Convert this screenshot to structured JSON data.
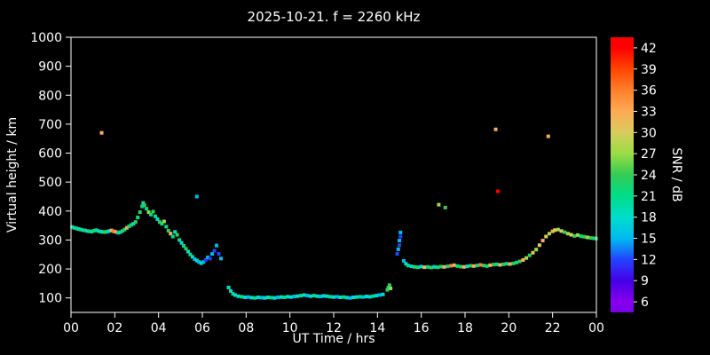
{
  "title": "2025-10-21. f = 2260 kHz",
  "colors": {
    "background": "#000000",
    "foreground": "#ffffff"
  },
  "chart_data": {
    "type": "scatter",
    "title": "2025-10-21. f = 2260 kHz",
    "xlabel": "UT Time / hrs",
    "ylabel": "Virtual height / km",
    "colorbar_label": "SNR / dB",
    "xlim": [
      0,
      24
    ],
    "ylim": [
      50,
      1000
    ],
    "x_ticks": [
      0,
      2,
      4,
      6,
      8,
      10,
      12,
      14,
      16,
      18,
      20,
      22,
      24
    ],
    "x_tick_labels": [
      "00",
      "02",
      "04",
      "06",
      "08",
      "10",
      "12",
      "14",
      "16",
      "18",
      "20",
      "22",
      "00"
    ],
    "y_ticks": [
      100,
      200,
      300,
      400,
      500,
      600,
      700,
      800,
      900,
      1000
    ],
    "grid": false,
    "colorbar": {
      "min": 4.5,
      "max": 43.5,
      "ticks": [
        6,
        9,
        12,
        15,
        18,
        21,
        24,
        27,
        30,
        33,
        36,
        39,
        42
      ],
      "stops": [
        [
          4.5,
          "#7a00e6"
        ],
        [
          6,
          "#8800ee"
        ],
        [
          9,
          "#4400e6"
        ],
        [
          12,
          "#2244ff"
        ],
        [
          15,
          "#00bbee"
        ],
        [
          18,
          "#00ddcc"
        ],
        [
          21,
          "#00dd88"
        ],
        [
          24,
          "#33cc55"
        ],
        [
          27,
          "#99dd44"
        ],
        [
          30,
          "#d8cc5e"
        ],
        [
          33,
          "#ffaa55"
        ],
        [
          36,
          "#ff7f2a"
        ],
        [
          39,
          "#ff4500"
        ],
        [
          42,
          "#ff0000"
        ],
        [
          43.5,
          "#ff0000"
        ]
      ]
    },
    "points": [
      [
        0.05,
        345,
        21
      ],
      [
        0.15,
        342,
        18
      ],
      [
        0.25,
        340,
        24
      ],
      [
        0.35,
        338,
        18
      ],
      [
        0.45,
        336,
        21
      ],
      [
        0.55,
        334,
        18
      ],
      [
        0.65,
        333,
        24
      ],
      [
        0.75,
        331,
        18
      ],
      [
        0.85,
        330,
        21
      ],
      [
        0.95,
        329,
        18
      ],
      [
        1.05,
        332,
        24
      ],
      [
        1.15,
        334,
        21
      ],
      [
        1.25,
        331,
        18
      ],
      [
        1.35,
        329,
        21
      ],
      [
        1.4,
        670,
        33
      ],
      [
        1.45,
        328,
        18
      ],
      [
        1.55,
        327,
        24
      ],
      [
        1.65,
        329,
        21
      ],
      [
        1.75,
        331,
        18
      ],
      [
        1.85,
        333,
        33
      ],
      [
        1.95,
        330,
        36
      ],
      [
        2.05,
        328,
        33
      ],
      [
        2.15,
        325,
        21
      ],
      [
        2.25,
        327,
        18
      ],
      [
        2.35,
        331,
        24
      ],
      [
        2.45,
        336,
        21
      ],
      [
        2.55,
        342,
        33
      ],
      [
        2.65,
        347,
        24
      ],
      [
        2.75,
        352,
        21
      ],
      [
        2.85,
        356,
        18
      ],
      [
        2.95,
        362,
        24
      ],
      [
        3.05,
        378,
        21
      ],
      [
        3.15,
        396,
        24
      ],
      [
        3.25,
        416,
        21
      ],
      [
        3.3,
        428,
        18
      ],
      [
        3.35,
        420,
        24
      ],
      [
        3.45,
        408,
        21
      ],
      [
        3.55,
        396,
        27
      ],
      [
        3.65,
        388,
        21
      ],
      [
        3.75,
        398,
        24
      ],
      [
        3.85,
        382,
        21
      ],
      [
        3.95,
        372,
        18
      ],
      [
        4.05,
        362,
        24
      ],
      [
        4.15,
        356,
        21
      ],
      [
        4.25,
        364,
        27
      ],
      [
        4.35,
        346,
        21
      ],
      [
        4.45,
        332,
        24
      ],
      [
        4.55,
        322,
        33
      ],
      [
        4.65,
        312,
        21
      ],
      [
        4.75,
        328,
        18
      ],
      [
        4.85,
        318,
        24
      ],
      [
        4.95,
        300,
        21
      ],
      [
        5.05,
        290,
        18
      ],
      [
        5.15,
        280,
        21
      ],
      [
        5.25,
        270,
        24
      ],
      [
        5.35,
        260,
        18
      ],
      [
        5.45,
        250,
        21
      ],
      [
        5.55,
        242,
        18
      ],
      [
        5.65,
        234,
        15
      ],
      [
        5.75,
        450,
        15
      ],
      [
        5.75,
        229,
        18
      ],
      [
        5.85,
        224,
        15
      ],
      [
        5.95,
        220,
        18
      ],
      [
        6.05,
        224,
        15
      ],
      [
        6.15,
        231,
        12
      ],
      [
        6.25,
        240,
        15
      ],
      [
        6.35,
        236,
        12
      ],
      [
        6.45,
        252,
        15
      ],
      [
        6.55,
        263,
        12
      ],
      [
        6.65,
        281,
        15
      ],
      [
        6.75,
        252,
        12
      ],
      [
        6.85,
        236,
        15
      ],
      [
        7.2,
        136,
        18
      ],
      [
        7.3,
        124,
        18
      ],
      [
        7.4,
        114,
        21
      ],
      [
        7.5,
        110,
        18
      ],
      [
        7.65,
        106,
        18
      ],
      [
        7.8,
        104,
        21
      ],
      [
        7.95,
        102,
        18
      ],
      [
        8.1,
        103,
        15
      ],
      [
        8.25,
        101,
        18
      ],
      [
        8.4,
        100,
        21
      ],
      [
        8.55,
        102,
        18
      ],
      [
        8.7,
        101,
        15
      ],
      [
        8.85,
        100,
        18
      ],
      [
        9.0,
        102,
        18
      ],
      [
        9.15,
        101,
        21
      ],
      [
        9.3,
        100,
        18
      ],
      [
        9.45,
        102,
        15
      ],
      [
        9.6,
        103,
        18
      ],
      [
        9.75,
        102,
        21
      ],
      [
        9.9,
        104,
        18
      ],
      [
        10.05,
        103,
        18
      ],
      [
        10.2,
        105,
        15
      ],
      [
        10.35,
        106,
        18
      ],
      [
        10.5,
        108,
        21
      ],
      [
        10.65,
        110,
        18
      ],
      [
        10.8,
        108,
        15
      ],
      [
        10.95,
        106,
        18
      ],
      [
        11.1,
        108,
        21
      ],
      [
        11.25,
        106,
        18
      ],
      [
        11.4,
        105,
        15
      ],
      [
        11.55,
        107,
        18
      ],
      [
        11.7,
        106,
        18
      ],
      [
        11.85,
        104,
        21
      ],
      [
        12.0,
        103,
        18
      ],
      [
        12.15,
        104,
        15
      ],
      [
        12.3,
        102,
        18
      ],
      [
        12.45,
        103,
        21
      ],
      [
        12.6,
        101,
        18
      ],
      [
        12.75,
        100,
        15
      ],
      [
        12.9,
        102,
        18
      ],
      [
        13.05,
        103,
        18
      ],
      [
        13.2,
        104,
        21
      ],
      [
        13.35,
        103,
        15
      ],
      [
        13.5,
        105,
        18
      ],
      [
        13.65,
        104,
        18
      ],
      [
        13.8,
        106,
        21
      ],
      [
        13.95,
        108,
        18
      ],
      [
        14.1,
        110,
        15
      ],
      [
        14.25,
        112,
        18
      ],
      [
        14.45,
        128,
        24
      ],
      [
        14.5,
        136,
        21
      ],
      [
        14.55,
        144,
        24
      ],
      [
        14.6,
        133,
        27
      ],
      [
        14.9,
        252,
        12
      ],
      [
        14.95,
        268,
        15
      ],
      [
        15.0,
        282,
        12
      ],
      [
        15.0,
        298,
        15
      ],
      [
        15.05,
        312,
        12
      ],
      [
        15.05,
        326,
        15
      ],
      [
        15.2,
        228,
        15
      ],
      [
        15.3,
        218,
        18
      ],
      [
        15.4,
        212,
        21
      ],
      [
        15.55,
        209,
        18
      ],
      [
        15.7,
        207,
        24
      ],
      [
        15.85,
        206,
        21
      ],
      [
        16.0,
        208,
        18
      ],
      [
        16.15,
        206,
        33
      ],
      [
        16.3,
        207,
        21
      ],
      [
        16.45,
        205,
        24
      ],
      [
        16.6,
        207,
        18
      ],
      [
        16.75,
        206,
        21
      ],
      [
        16.8,
        422,
        27
      ],
      [
        16.9,
        208,
        24
      ],
      [
        17.05,
        207,
        33
      ],
      [
        17.1,
        412,
        24
      ],
      [
        17.2,
        209,
        21
      ],
      [
        17.35,
        211,
        36
      ],
      [
        17.5,
        213,
        33
      ],
      [
        17.65,
        210,
        21
      ],
      [
        17.8,
        208,
        24
      ],
      [
        17.95,
        207,
        33
      ],
      [
        18.1,
        209,
        18
      ],
      [
        18.25,
        211,
        24
      ],
      [
        18.4,
        210,
        33
      ],
      [
        18.55,
        212,
        21
      ],
      [
        18.7,
        214,
        36
      ],
      [
        18.85,
        212,
        24
      ],
      [
        19.0,
        210,
        21
      ],
      [
        19.15,
        213,
        33
      ],
      [
        19.3,
        215,
        24
      ],
      [
        19.4,
        682,
        33
      ],
      [
        19.45,
        216,
        21
      ],
      [
        19.5,
        468,
        42
      ],
      [
        19.6,
        214,
        33
      ],
      [
        19.75,
        216,
        24
      ],
      [
        19.9,
        218,
        21
      ],
      [
        20.05,
        217,
        33
      ],
      [
        20.2,
        219,
        24
      ],
      [
        20.35,
        222,
        21
      ],
      [
        20.5,
        226,
        24
      ],
      [
        20.65,
        231,
        33
      ],
      [
        20.8,
        238,
        27
      ],
      [
        20.95,
        247,
        24
      ],
      [
        21.1,
        256,
        30
      ],
      [
        21.25,
        267,
        27
      ],
      [
        21.4,
        282,
        30
      ],
      [
        21.55,
        298,
        33
      ],
      [
        21.7,
        312,
        30
      ],
      [
        21.8,
        658,
        33
      ],
      [
        21.85,
        322,
        27
      ],
      [
        22.0,
        330,
        33
      ],
      [
        22.1,
        334,
        30
      ],
      [
        22.25,
        336,
        27
      ],
      [
        22.4,
        331,
        30
      ],
      [
        22.55,
        327,
        24
      ],
      [
        22.7,
        322,
        27
      ],
      [
        22.85,
        318,
        30
      ],
      [
        23.0,
        314,
        24
      ],
      [
        23.15,
        317,
        27
      ],
      [
        23.3,
        313,
        21
      ],
      [
        23.45,
        311,
        24
      ],
      [
        23.6,
        309,
        27
      ],
      [
        23.75,
        307,
        24
      ],
      [
        23.9,
        306,
        21
      ],
      [
        23.98,
        305,
        24
      ]
    ]
  }
}
